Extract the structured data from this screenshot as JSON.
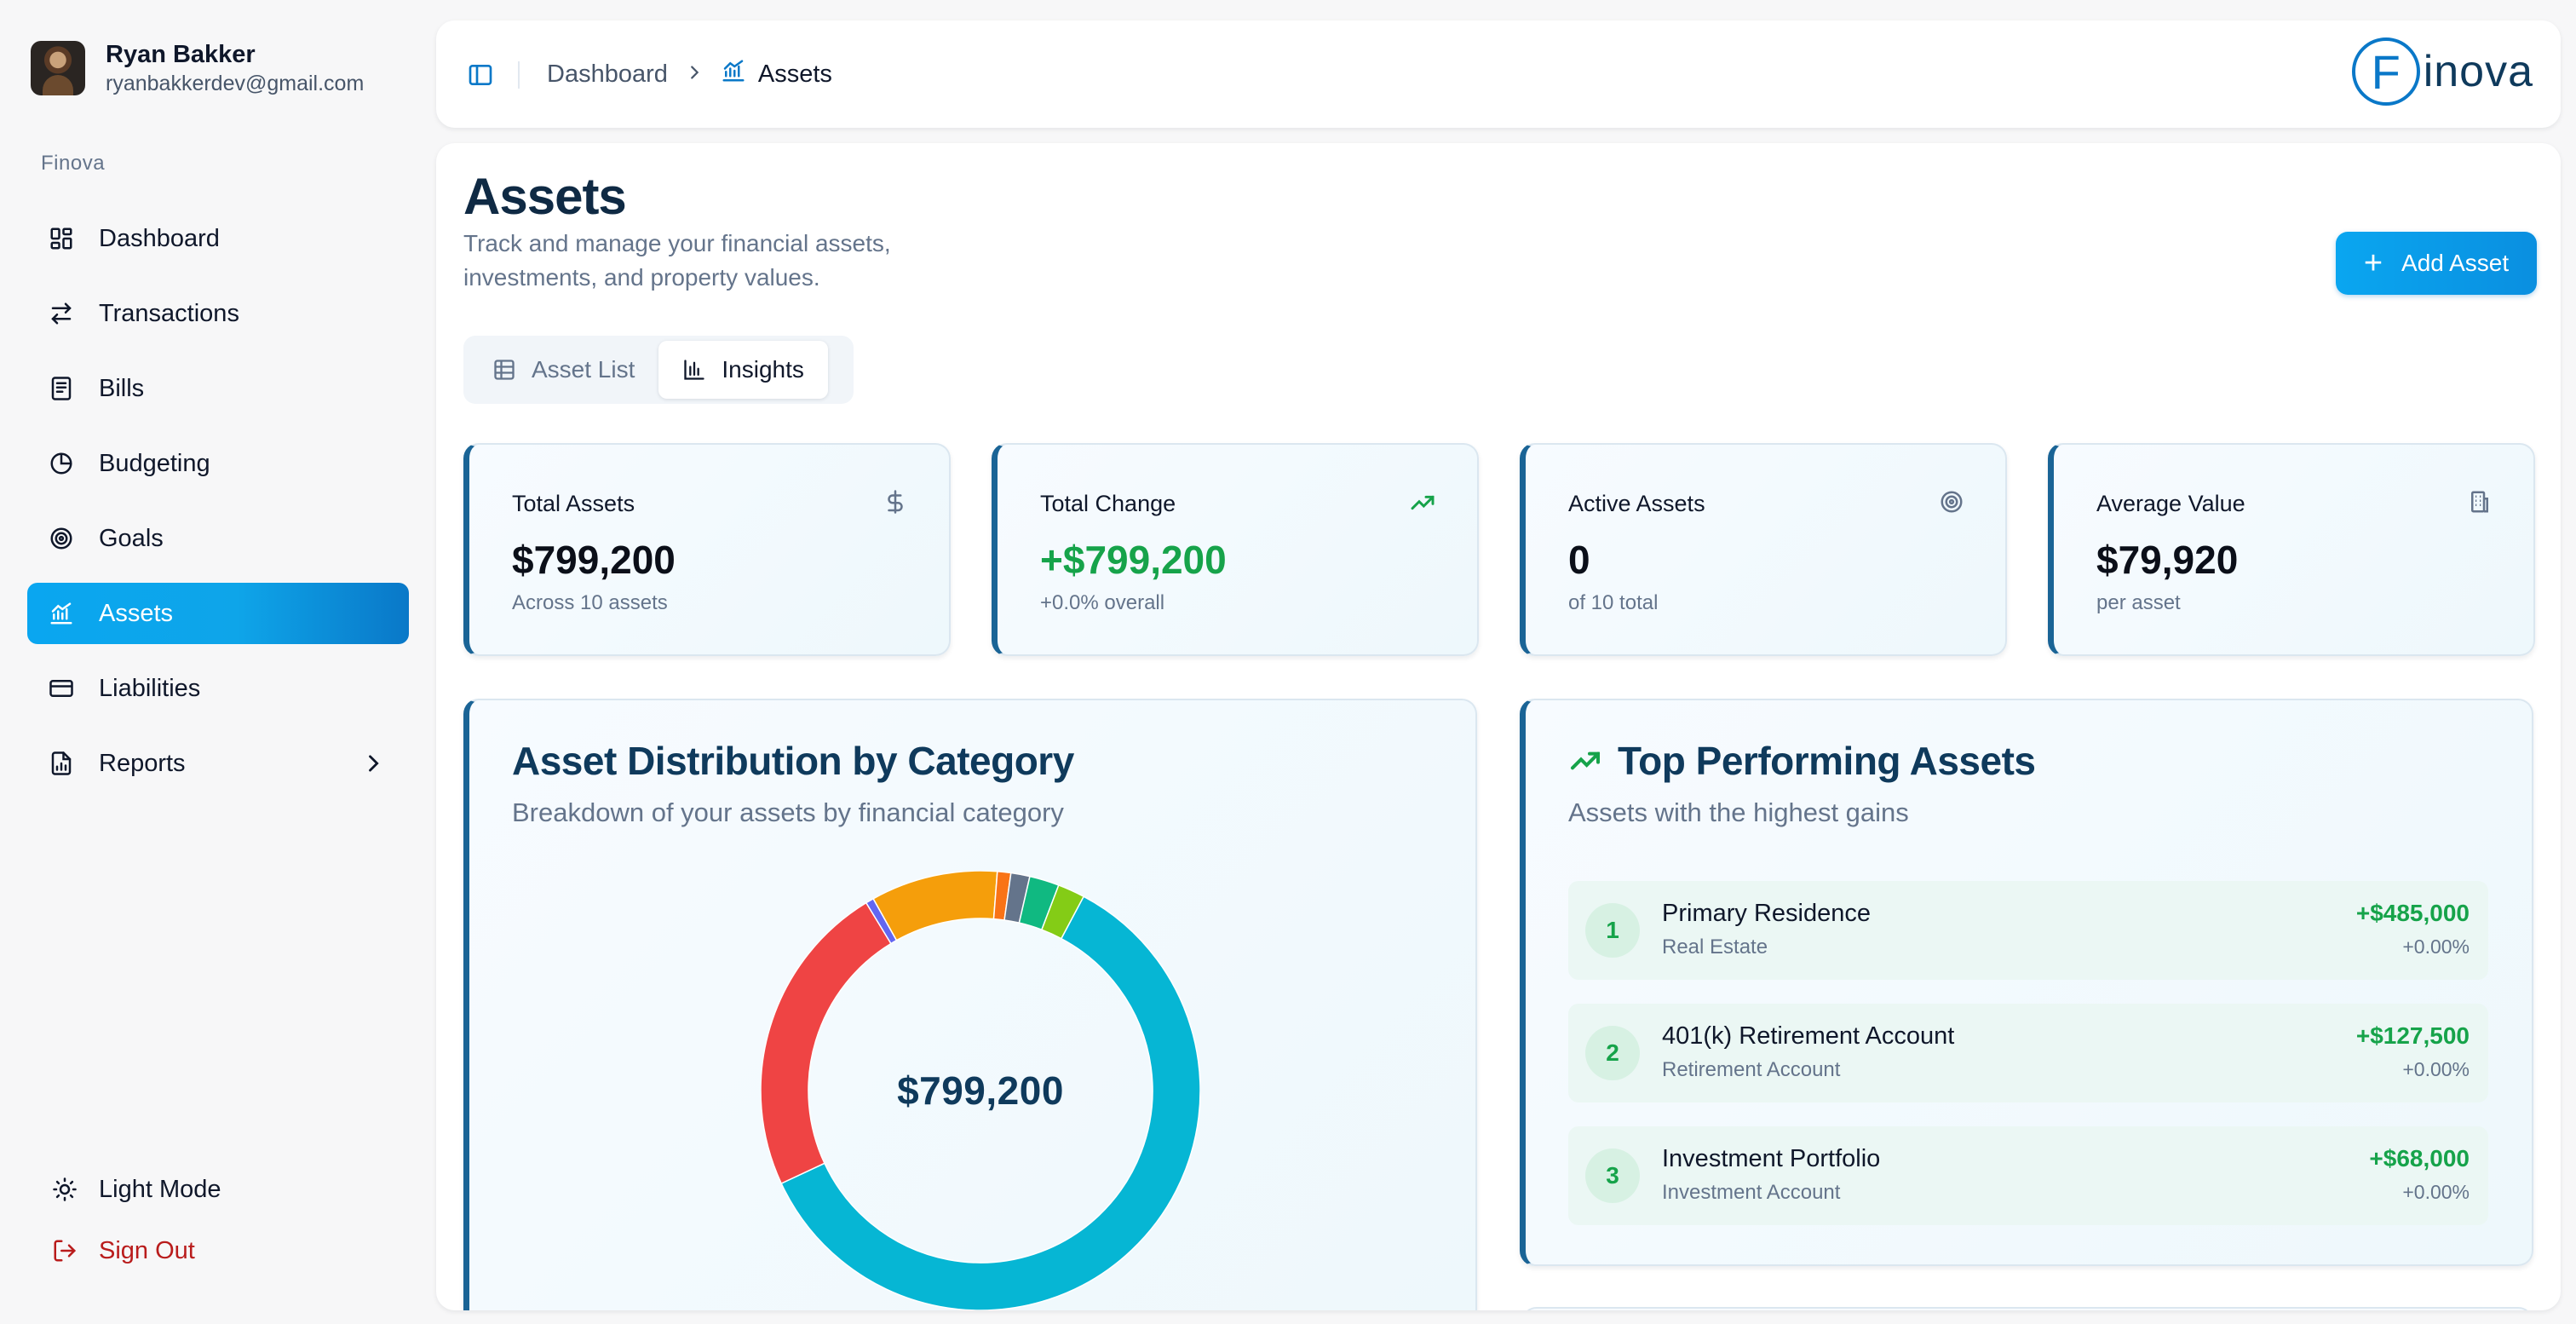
{
  "user": {
    "name": "Ryan Bakker",
    "email": "ryanbakkerdev@gmail.com"
  },
  "sidebar": {
    "section_label": "Finova",
    "items": [
      {
        "label": "Dashboard",
        "icon": "dashboard-icon"
      },
      {
        "label": "Transactions",
        "icon": "arrows-icon"
      },
      {
        "label": "Bills",
        "icon": "receipt-icon"
      },
      {
        "label": "Budgeting",
        "icon": "pie-icon"
      },
      {
        "label": "Goals",
        "icon": "target-icon"
      },
      {
        "label": "Assets",
        "icon": "chart-icon",
        "active": true
      },
      {
        "label": "Liabilities",
        "icon": "credit-card-icon"
      },
      {
        "label": "Reports",
        "icon": "report-icon"
      }
    ],
    "light_mode_label": "Light Mode",
    "sign_out_label": "Sign Out"
  },
  "topbar": {
    "breadcrumb": [
      "Dashboard",
      "Assets"
    ],
    "logo_letter": "F",
    "logo_text": "inova"
  },
  "page": {
    "title": "Assets",
    "subtitle": "Track and manage your financial assets, investments, and property values.",
    "add_button": "Add Asset",
    "tabs": [
      "Asset List",
      "Insights"
    ],
    "active_tab": "Insights"
  },
  "stats": [
    {
      "label": "Total Assets",
      "value": "$799,200",
      "sub": "Across 10 assets",
      "icon": "dollar-icon"
    },
    {
      "label": "Total Change",
      "value": "+$799,200",
      "sub": "+0.0% overall",
      "icon": "trend-up-icon"
    },
    {
      "label": "Active Assets",
      "value": "0",
      "sub": "of 10 total",
      "icon": "target-icon"
    },
    {
      "label": "Average Value",
      "value": "$79,920",
      "sub": "per asset",
      "icon": "building-icon"
    }
  ],
  "distribution": {
    "title": "Asset Distribution by Category",
    "subtitle": "Breakdown of your assets by financial category",
    "center_label": "$799,200"
  },
  "chart_data": {
    "type": "pie",
    "title": "Asset Distribution by Category",
    "center_label": "$799,200",
    "slices": [
      {
        "value": 60.7,
        "color": "#06b6d4"
      },
      {
        "value": 23.4,
        "color": "#ef4444"
      },
      {
        "value": 0.6,
        "color": "#6366f1"
      },
      {
        "value": 9.4,
        "color": "#f59e0b"
      },
      {
        "value": 1.0,
        "color": "#f97316"
      },
      {
        "value": 1.4,
        "color": "#64748b"
      },
      {
        "value": 2.2,
        "color": "#10b981"
      },
      {
        "value": 2.0,
        "color": "#84cc16"
      }
    ]
  },
  "top_performing": {
    "title": "Top Performing Assets",
    "subtitle": "Assets with the highest gains",
    "items": [
      {
        "rank": "1",
        "name": "Primary Residence",
        "category": "Real Estate",
        "amount": "+$485,000",
        "pct": "+0.00%"
      },
      {
        "rank": "2",
        "name": "401(k) Retirement Account",
        "category": "Retirement Account",
        "amount": "+$127,500",
        "pct": "+0.00%"
      },
      {
        "rank": "3",
        "name": "Investment Portfolio",
        "category": "Investment Account",
        "amount": "+$68,000",
        "pct": "+0.00%"
      }
    ]
  },
  "colors": {
    "accent": "#0ea5e9",
    "accent_dark": "#0a78c8",
    "positive": "#16a34a",
    "danger": "#b91c1c",
    "card_border": "#1a6496"
  }
}
